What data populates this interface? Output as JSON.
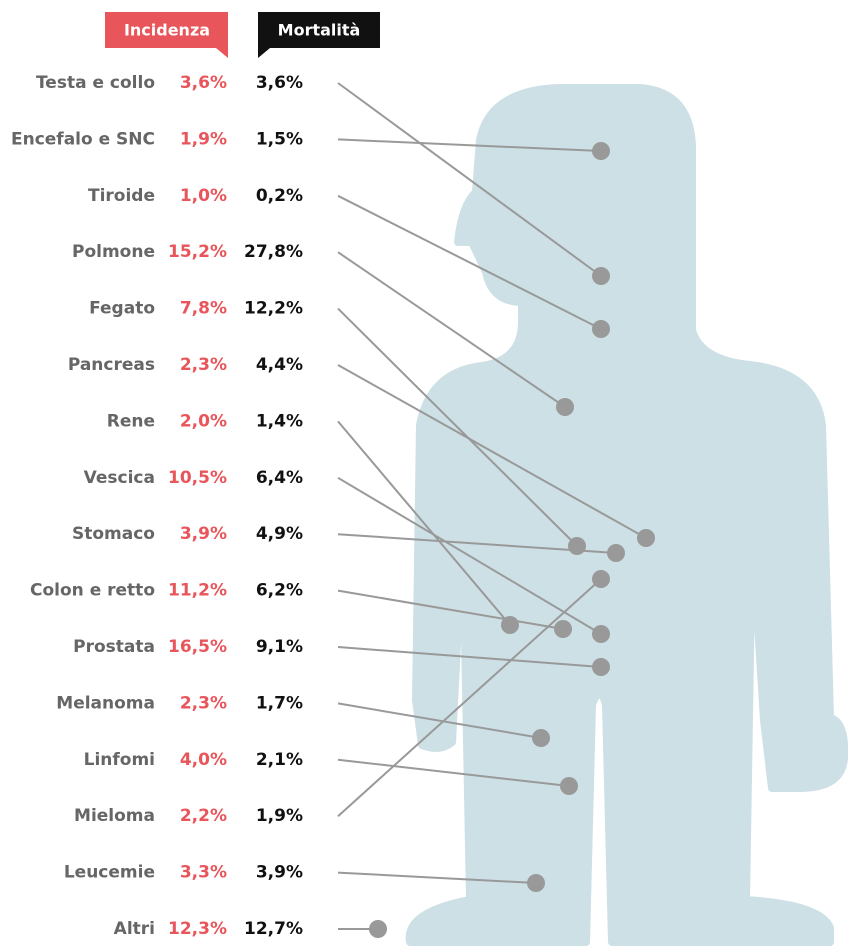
{
  "header": {
    "incidence": "Incidenza",
    "mortality": "Mortalità"
  },
  "rows": [
    {
      "name": "Testa e collo",
      "incidence": "3,6%",
      "mortality": "3,6%"
    },
    {
      "name": "Encefalo e SNC",
      "incidence": "1,9%",
      "mortality": "1,5%"
    },
    {
      "name": "Tiroide",
      "incidence": "1,0%",
      "mortality": "0,2%"
    },
    {
      "name": "Polmone",
      "incidence": "15,2%",
      "mortality": "27,8%"
    },
    {
      "name": "Fegato",
      "incidence": "7,8%",
      "mortality": "12,2%"
    },
    {
      "name": "Pancreas",
      "incidence": "2,3%",
      "mortality": "4,4%"
    },
    {
      "name": "Rene",
      "incidence": "2,0%",
      "mortality": "1,4%"
    },
    {
      "name": "Vescica",
      "incidence": "10,5%",
      "mortality": "6,4%"
    },
    {
      "name": "Stomaco",
      "incidence": "3,9%",
      "mortality": "4,9%"
    },
    {
      "name": "Colon e retto",
      "incidence": "11,2%",
      "mortality": "6,2%"
    },
    {
      "name": "Prostata",
      "incidence": "16,5%",
      "mortality": "9,1%"
    },
    {
      "name": "Melanoma",
      "incidence": "2,3%",
      "mortality": "1,7%"
    },
    {
      "name": "Linfomi",
      "incidence": "4,0%",
      "mortality": "2,1%"
    },
    {
      "name": "Mieloma",
      "incidence": "2,2%",
      "mortality": "1,9%"
    },
    {
      "name": "Leucemie",
      "incidence": "3,3%",
      "mortality": "3,9%"
    },
    {
      "name": "Altri",
      "incidence": "12,3%",
      "mortality": "12,7%"
    }
  ]
}
